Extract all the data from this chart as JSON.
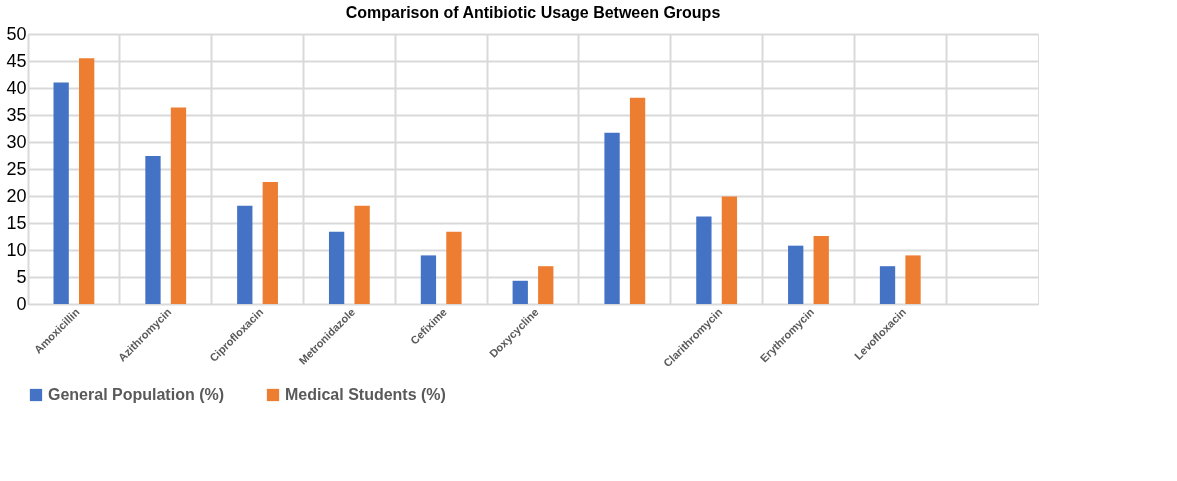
{
  "chart_data": {
    "type": "bar",
    "title": "Comparison of Antibiotic Usage Between Groups",
    "categories": [
      "Amoxicillin",
      "Azithromycin",
      "Ciprofloxacin",
      "Metronidazole",
      "Cefixime",
      "Doxycycline",
      null,
      "Clarithromycin",
      "Erythromycin",
      "Levofloxacin",
      null
    ],
    "series": [
      {
        "name": "General Population (%)",
        "color": "#4472c4",
        "values": [
          41.0,
          27.4,
          18.2,
          13.4,
          9.0,
          4.3,
          31.7,
          16.2,
          10.8,
          7.0,
          null
        ]
      },
      {
        "name": "Medical Students (%)",
        "color": "#ed7d31",
        "values": [
          45.5,
          36.4,
          22.6,
          18.2,
          13.4,
          7.0,
          38.2,
          19.9,
          12.6,
          9.0,
          null
        ]
      }
    ],
    "ylim": [
      0,
      50
    ],
    "yticks": [
      0,
      5,
      10,
      15,
      20,
      25,
      30,
      35,
      40,
      45,
      50
    ],
    "grid": true,
    "legend": "bottom"
  }
}
